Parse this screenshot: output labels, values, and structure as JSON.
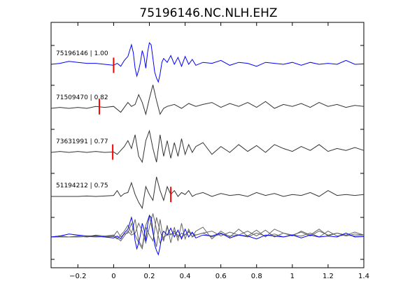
{
  "chart_data": {
    "type": "line",
    "title": "75196146.NC.NLH.EHZ",
    "xlabel": "",
    "ylabel": "",
    "xlim": [
      -0.35,
      1.4
    ],
    "x_ticks": [
      -0.2,
      0,
      0.2,
      0.4,
      0.6,
      0.8,
      1,
      1.2,
      1.4
    ],
    "x_tick_labels": [
      "−0.2",
      "0",
      "0.2",
      "0.4",
      "0.6",
      "0.8",
      "1",
      "1.2",
      "1.4"
    ],
    "grid": false,
    "colors": {
      "reference": "#0000ff",
      "trace": "#333333",
      "overlay": "#666666",
      "pick": "#ff0000"
    },
    "series": [
      {
        "name": "75196146 | 1.00",
        "pick_time": 0.0,
        "color": "#0000ff",
        "x": [
          -0.35,
          -0.3,
          -0.25,
          -0.2,
          -0.15,
          -0.1,
          -0.05,
          0,
          0.02,
          0.04,
          0.06,
          0.08,
          0.1,
          0.11,
          0.12,
          0.13,
          0.14,
          0.15,
          0.16,
          0.17,
          0.18,
          0.19,
          0.2,
          0.21,
          0.22,
          0.23,
          0.24,
          0.25,
          0.26,
          0.27,
          0.28,
          0.3,
          0.32,
          0.34,
          0.36,
          0.38,
          0.4,
          0.42,
          0.44,
          0.46,
          0.5,
          0.55,
          0.6,
          0.65,
          0.7,
          0.75,
          0.8,
          0.85,
          0.9,
          0.95,
          1.0,
          1.05,
          1.1,
          1.15,
          1.2,
          1.25,
          1.3,
          1.35,
          1.4
        ],
        "y": [
          0,
          0.05,
          0.15,
          0.1,
          0.05,
          0.05,
          0,
          -0.05,
          0.05,
          -0.1,
          0.2,
          0.4,
          1.0,
          0.6,
          -0.2,
          -0.6,
          -0.3,
          0.1,
          0.7,
          0.4,
          -0.2,
          0.6,
          1.1,
          1.0,
          0.3,
          -0.4,
          -0.7,
          -0.9,
          -0.5,
          0.1,
          0.3,
          0.1,
          0.45,
          0.0,
          0.35,
          -0.1,
          0.4,
          0.0,
          0.25,
          -0.05,
          0.1,
          0.05,
          0.2,
          -0.05,
          0.1,
          0.05,
          -0.1,
          0.1,
          0.05,
          0.0,
          0.1,
          -0.05,
          0.1,
          0.0,
          0.05,
          0.0,
          0.2,
          0.0,
          0.02
        ]
      },
      {
        "name": "71509470 | 0.82",
        "pick_time": -0.08,
        "color": "#333333",
        "x": [
          -0.35,
          -0.3,
          -0.25,
          -0.2,
          -0.15,
          -0.1,
          -0.05,
          0,
          0.04,
          0.08,
          0.1,
          0.12,
          0.14,
          0.16,
          0.18,
          0.2,
          0.22,
          0.24,
          0.26,
          0.28,
          0.3,
          0.34,
          0.38,
          0.42,
          0.46,
          0.5,
          0.55,
          0.6,
          0.65,
          0.7,
          0.75,
          0.8,
          0.85,
          0.9,
          0.95,
          1.0,
          1.05,
          1.1,
          1.15,
          1.2,
          1.25,
          1.3,
          1.35,
          1.4
        ],
        "y": [
          0,
          0.05,
          0,
          0.05,
          0,
          0.1,
          0.05,
          0.1,
          -0.2,
          0.3,
          0.1,
          0.2,
          0.7,
          0.3,
          -0.3,
          0.5,
          1.2,
          0.4,
          -0.3,
          0.0,
          0.1,
          0.2,
          0.0,
          0.25,
          0.1,
          0.2,
          0.3,
          0.05,
          0.25,
          0.1,
          0.3,
          0.05,
          0.35,
          0.0,
          0.2,
          0.1,
          0.25,
          0.05,
          0.3,
          0.1,
          0.2,
          0.05,
          0.15,
          0.1
        ]
      },
      {
        "name": "73631991 | 0.77",
        "pick_time": -0.005,
        "color": "#333333",
        "x": [
          -0.35,
          -0.3,
          -0.25,
          -0.2,
          -0.15,
          -0.1,
          -0.05,
          0,
          0.02,
          0.04,
          0.06,
          0.08,
          0.1,
          0.12,
          0.14,
          0.16,
          0.18,
          0.2,
          0.22,
          0.24,
          0.26,
          0.28,
          0.3,
          0.32,
          0.34,
          0.36,
          0.38,
          0.4,
          0.42,
          0.44,
          0.46,
          0.5,
          0.55,
          0.6,
          0.65,
          0.7,
          0.75,
          0.8,
          0.85,
          0.9,
          0.95,
          1.0,
          1.05,
          1.1,
          1.15,
          1.2,
          1.25,
          1.3,
          1.35,
          1.4
        ],
        "y": [
          0,
          0.05,
          0,
          0.05,
          0,
          0.05,
          0,
          0.02,
          -0.1,
          0.1,
          0.3,
          0.6,
          0.2,
          0.9,
          -0.2,
          -0.5,
          0.6,
          1.1,
          0.2,
          -0.5,
          0.9,
          -0.2,
          0.6,
          -0.3,
          0.5,
          -0.2,
          0.7,
          -0.1,
          0.4,
          0.0,
          0.3,
          0.5,
          -0.1,
          0.3,
          0.0,
          0.4,
          0.05,
          0.35,
          0.0,
          0.4,
          0.2,
          0.05,
          0.3,
          0.1,
          0.4,
          0.05,
          0.2,
          0.1,
          0.25,
          0.1
        ]
      },
      {
        "name": "51194212 | 0.75",
        "pick_time": 0.32,
        "color": "#333333",
        "x": [
          -0.35,
          -0.3,
          -0.25,
          -0.2,
          -0.15,
          -0.1,
          -0.05,
          0,
          0.02,
          0.04,
          0.06,
          0.08,
          0.1,
          0.12,
          0.14,
          0.16,
          0.18,
          0.2,
          0.22,
          0.24,
          0.26,
          0.28,
          0.3,
          0.32,
          0.34,
          0.36,
          0.38,
          0.4,
          0.42,
          0.44,
          0.46,
          0.5,
          0.55,
          0.6,
          0.65,
          0.7,
          0.75,
          0.8,
          0.85,
          0.9,
          0.95,
          1.0,
          1.05,
          1.1,
          1.15,
          1.2,
          1.25,
          1.3,
          1.35,
          1.4
        ],
        "y": [
          0,
          0,
          0,
          0,
          0.02,
          0,
          0.02,
          0.05,
          0.3,
          0.0,
          0.15,
          0.2,
          0.7,
          0.1,
          -0.3,
          -0.6,
          0.5,
          0.1,
          -0.2,
          1.0,
          0.3,
          -0.2,
          0.5,
          0.1,
          0.3,
          0.0,
          0.2,
          0.1,
          0.3,
          0.0,
          0.1,
          0.2,
          0.0,
          0.15,
          0.05,
          0.1,
          0.0,
          0.2,
          0.05,
          0.15,
          0.0,
          0.1,
          0.05,
          0.2,
          0.0,
          0.3,
          0.05,
          0.1,
          0.05,
          0.1
        ]
      }
    ]
  }
}
